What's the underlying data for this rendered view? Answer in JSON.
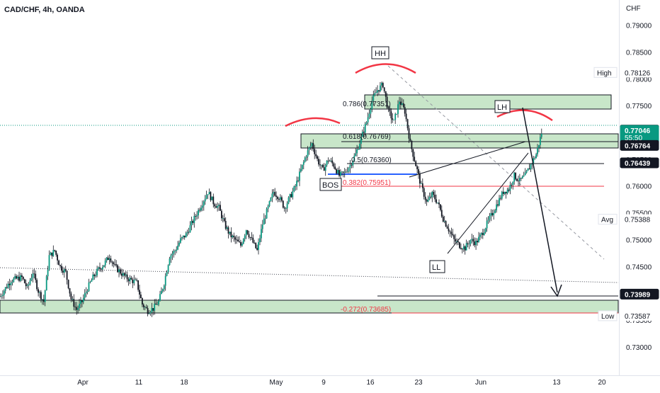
{
  "chart_data": {
    "type": "candlestick",
    "title": "CAD/CHF, 4h, OANDA",
    "currency": "CHF",
    "y_ticks": [
      "0.79000",
      "0.78500",
      "0.78000",
      "0.77500",
      "0.77000",
      "0.76500",
      "0.76000",
      "0.75500",
      "0.75000",
      "0.74500",
      "0.74000",
      "0.73500",
      "0.73000"
    ],
    "x_ticks": [
      "Apr",
      "11",
      "18",
      "May",
      "9",
      "16",
      "23",
      "Jun",
      "13",
      "20"
    ],
    "ylim": [
      0.727,
      0.7928
    ],
    "timeline_end_units": 113,
    "grid": false,
    "price_path": [
      [
        0,
        0.7395
      ],
      [
        2,
        0.7425
      ],
      [
        4,
        0.743
      ],
      [
        5,
        0.741
      ],
      [
        6,
        0.744
      ],
      [
        7,
        0.7405
      ],
      [
        8,
        0.7385
      ],
      [
        9,
        0.747
      ],
      [
        10,
        0.748
      ],
      [
        11,
        0.745
      ],
      [
        12,
        0.744
      ],
      [
        13,
        0.739
      ],
      [
        14,
        0.737
      ],
      [
        15,
        0.7385
      ],
      [
        16,
        0.741
      ],
      [
        17,
        0.743
      ],
      [
        18,
        0.7445
      ],
      [
        19,
        0.7455
      ],
      [
        20,
        0.747
      ],
      [
        21,
        0.745
      ],
      [
        22,
        0.744
      ],
      [
        23,
        0.743
      ],
      [
        24,
        0.7425
      ],
      [
        25,
        0.742
      ],
      [
        26,
        0.738
      ],
      [
        27,
        0.7368
      ],
      [
        28,
        0.7372
      ],
      [
        29,
        0.7385
      ],
      [
        30,
        0.742
      ],
      [
        31,
        0.747
      ],
      [
        32,
        0.748
      ],
      [
        33,
        0.75
      ],
      [
        34,
        0.751
      ],
      [
        35,
        0.753
      ],
      [
        36,
        0.755
      ],
      [
        37,
        0.757
      ],
      [
        38,
        0.759
      ],
      [
        39,
        0.757
      ],
      [
        40,
        0.756
      ],
      [
        41,
        0.753
      ],
      [
        42,
        0.751
      ],
      [
        43,
        0.75
      ],
      [
        44,
        0.749
      ],
      [
        45,
        0.752
      ],
      [
        46,
        0.75
      ],
      [
        47,
        0.748
      ],
      [
        48,
        0.753
      ],
      [
        49,
        0.756
      ],
      [
        50,
        0.759
      ],
      [
        51,
        0.758
      ],
      [
        52,
        0.756
      ],
      [
        53,
        0.758
      ],
      [
        54,
        0.76
      ],
      [
        55,
        0.763
      ],
      [
        56,
        0.766
      ],
      [
        57,
        0.768
      ],
      [
        58,
        0.765
      ],
      [
        59,
        0.763
      ],
      [
        60,
        0.765
      ],
      [
        61,
        0.764
      ],
      [
        62,
        0.762
      ],
      [
        63,
        0.7625
      ],
      [
        64,
        0.764
      ],
      [
        65,
        0.766
      ],
      [
        66,
        0.769
      ],
      [
        67,
        0.772
      ],
      [
        68,
        0.776
      ],
      [
        69,
        0.778
      ],
      [
        70,
        0.779
      ],
      [
        71,
        0.774
      ],
      [
        72,
        0.772
      ],
      [
        73,
        0.776
      ],
      [
        74,
        0.774
      ],
      [
        75,
        0.768
      ],
      [
        76,
        0.764
      ],
      [
        77,
        0.76
      ],
      [
        78,
        0.757
      ],
      [
        79,
        0.7585
      ],
      [
        80,
        0.757
      ],
      [
        81,
        0.754
      ],
      [
        82,
        0.752
      ],
      [
        83,
        0.75
      ],
      [
        84,
        0.749
      ],
      [
        85,
        0.7485
      ],
      [
        86,
        0.75
      ],
      [
        87,
        0.7495
      ],
      [
        88,
        0.751
      ],
      [
        89,
        0.753
      ],
      [
        90,
        0.755
      ],
      [
        91,
        0.757
      ],
      [
        92,
        0.759
      ],
      [
        93,
        0.7595
      ],
      [
        94,
        0.762
      ],
      [
        95,
        0.761
      ],
      [
        96,
        0.762
      ],
      [
        97,
        0.764
      ],
      [
        98,
        0.766
      ],
      [
        99,
        0.77
      ]
    ],
    "price_levels": [
      {
        "label": "High",
        "value": "0.78126",
        "price": 0.78126,
        "tag_color": "#ffffff",
        "text_color": "#131722"
      },
      {
        "label": "",
        "value": "0.77051",
        "price": 0.77051,
        "tag_color": "#131722",
        "text_color": "#ffffff"
      },
      {
        "label": "",
        "value": "0.77046",
        "price": 0.77046,
        "sub": "55:50",
        "tag_color": "#089981",
        "text_color": "#ffffff"
      },
      {
        "label": "",
        "value": "0.76764",
        "price": 0.76764,
        "tag_color": "#131722",
        "text_color": "#ffffff"
      },
      {
        "label": "",
        "value": "0.76439",
        "price": 0.76439,
        "tag_color": "#131722",
        "text_color": "#ffffff"
      },
      {
        "label": "Avg",
        "value": "0.75388",
        "price": 0.75388,
        "tag_color": "#ffffff",
        "text_color": "#131722"
      },
      {
        "label": "",
        "value": "0.73989",
        "price": 0.73989,
        "tag_color": "#131722",
        "text_color": "#ffffff"
      },
      {
        "label": "Low",
        "value": "0.73587",
        "price": 0.73587,
        "tag_color": "#ffffff",
        "text_color": "#131722"
      }
    ],
    "fib_labels": {
      "f786": "0.786(0.77351)",
      "f618": "0.618(0.76769)",
      "f5": "0.5(0.76360)",
      "f382": "0.382(0.75951)",
      "fneg272": "-0.272(0.73685)"
    },
    "annotations": {
      "hh": "HH",
      "lh": "LH",
      "bos": "BOS",
      "ll": "LL"
    }
  }
}
